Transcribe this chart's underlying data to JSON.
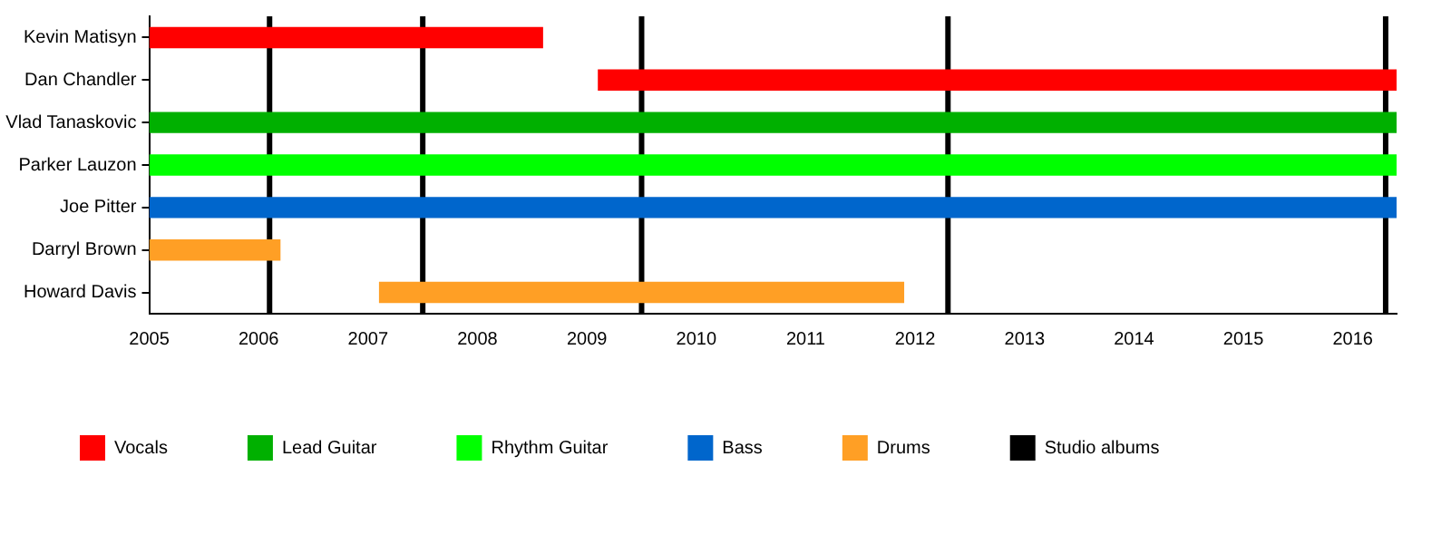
{
  "chart_data": {
    "type": "bar",
    "orientation": "horizontal",
    "stacked": true,
    "categories": [
      "Kevin Matisyn",
      "Dan Chandler",
      "Vlad Tanaskovic",
      "Parker Lauzon",
      "Joe Pitter",
      "Darryl Brown",
      "Howard Davis"
    ],
    "series": [
      {
        "name": "Vocals",
        "color": "#ff0000",
        "values": [
          3.6,
          7.3,
          null,
          null,
          null,
          null,
          null
        ],
        "base": [
          2005,
          2009.1,
          null,
          null,
          null,
          null,
          null
        ]
      },
      {
        "name": "Lead Guitar",
        "color": "#00b000",
        "values": [
          null,
          null,
          11.4,
          null,
          null,
          null,
          null
        ],
        "base": [
          null,
          null,
          2005,
          null,
          null,
          null,
          null
        ]
      },
      {
        "name": "Rhythm Guitar",
        "color": "#00ff00",
        "values": [
          null,
          null,
          null,
          11.4,
          null,
          null,
          null
        ],
        "base": [
          null,
          null,
          null,
          2005,
          null,
          null,
          null
        ]
      },
      {
        "name": "Bass",
        "color": "#0066cc",
        "values": [
          null,
          null,
          null,
          null,
          11.4,
          null,
          null
        ],
        "base": [
          null,
          null,
          null,
          null,
          2005,
          null,
          null
        ]
      },
      {
        "name": "Drums",
        "color": "#ff9f25",
        "values": [
          null,
          null,
          null,
          null,
          null,
          1.2,
          4.8
        ],
        "base": [
          null,
          null,
          null,
          null,
          null,
          2005,
          2007.1
        ]
      }
    ],
    "ref_lines": [
      {
        "axis": "x",
        "value": 2006.1,
        "label": "Studio albums",
        "color": "#000000"
      },
      {
        "axis": "x",
        "value": 2007.5,
        "color": "#000000"
      },
      {
        "axis": "x",
        "value": 2009.5,
        "color": "#000000"
      },
      {
        "axis": "x",
        "value": 2012.3,
        "color": "#000000"
      },
      {
        "axis": "x",
        "value": 2016.3,
        "color": "#000000"
      }
    ],
    "xlim": [
      2005,
      2016.4
    ],
    "xticks": [
      2005,
      2006,
      2007,
      2008,
      2009,
      2010,
      2011,
      2012,
      2013,
      2014,
      2015,
      2016
    ],
    "grid": false,
    "legend": "bottom"
  }
}
